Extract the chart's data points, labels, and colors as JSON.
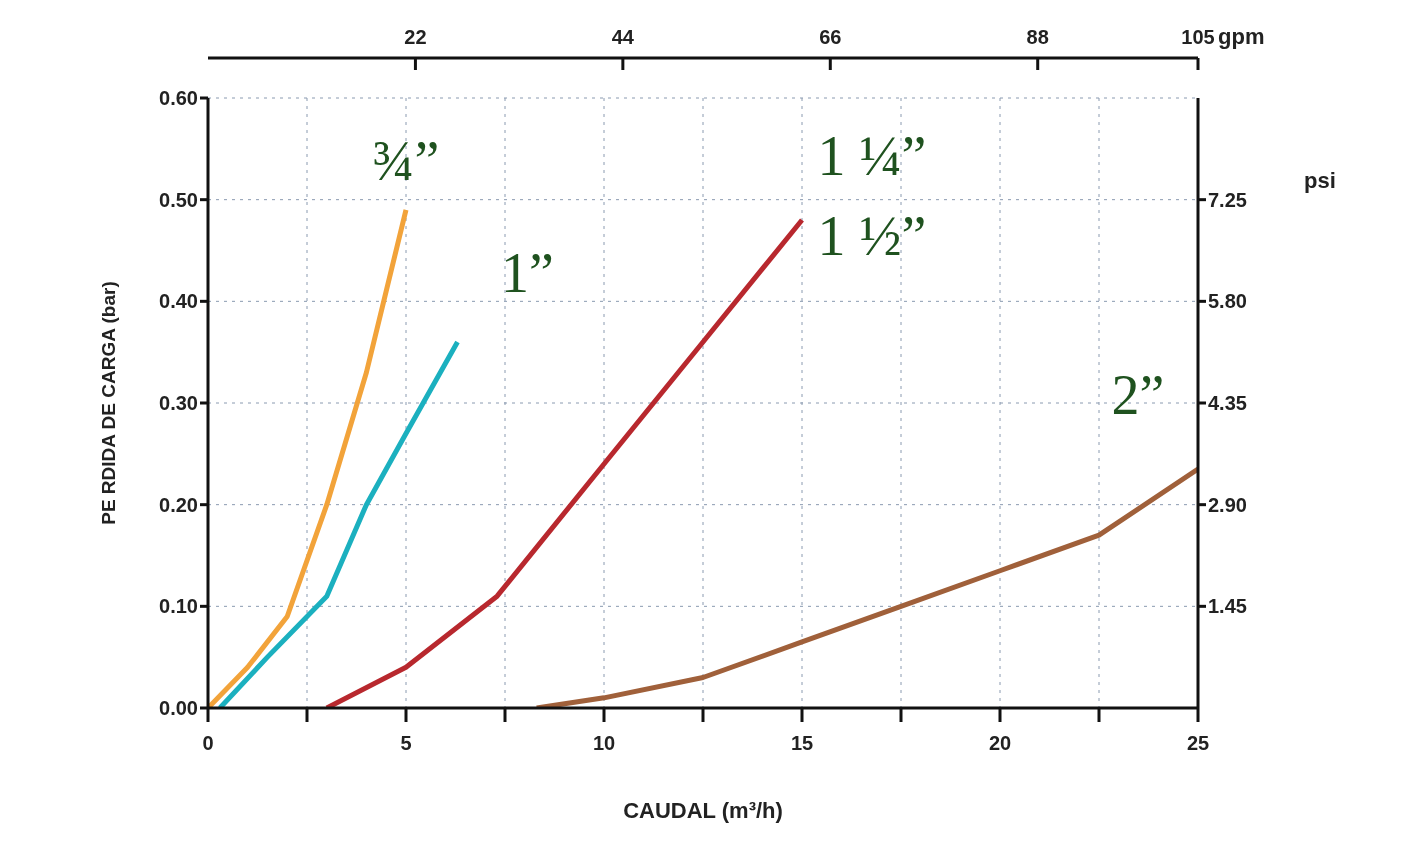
{
  "chart_data": {
    "type": "line",
    "xlabel": "CAUDAL (m³/h)",
    "ylabel": "PE RDIDA DE CARGA (bar)",
    "x2label": "gpm",
    "y2label": "psi",
    "series": [
      {
        "name": "¾”",
        "color": "#f2a33a",
        "x": [
          0,
          1,
          2,
          3,
          4,
          4.5,
          5
        ],
        "values": [
          0,
          0.04,
          0.09,
          0.2,
          0.33,
          0.41,
          0.49
        ]
      },
      {
        "name": "1”",
        "color": "#1bb0bf",
        "x": [
          0.3,
          1.5,
          3,
          4,
          5,
          6.3
        ],
        "values": [
          0,
          0.05,
          0.11,
          0.2,
          0.27,
          0.36
        ]
      },
      {
        "name": "1 ¼”",
        "color": "#b8282e",
        "x": [
          3,
          5,
          7.3,
          10,
          12.5,
          15
        ],
        "values": [
          0,
          0.04,
          0.11,
          0.24,
          0.36,
          0.48
        ]
      },
      {
        "name": "2”",
        "color": "#a0603a",
        "x": [
          8.3,
          10,
          12.5,
          15,
          17.5,
          20,
          22.5,
          25
        ],
        "values": [
          0,
          0.01,
          0.03,
          0.065,
          0.1,
          0.135,
          0.17,
          0.235
        ]
      }
    ],
    "annotations": [
      {
        "text": "1 ½”",
        "x": 15,
        "y": 0.48
      }
    ],
    "xlim": [
      0,
      25
    ],
    "xticks": [
      0,
      {
        "value": 2.5,
        "label": null
      },
      5,
      {
        "value": 7.5,
        "label": null
      },
      10,
      {
        "value": 12.5,
        "label": null
      },
      15,
      {
        "value": 17.5,
        "label": null
      },
      20,
      {
        "value": 22.5,
        "label": null
      },
      25
    ],
    "ylim": [
      0,
      0.6
    ],
    "yticks": [
      {
        "value": 0,
        "label": "0.00"
      },
      {
        "value": 0.1,
        "label": "0.10"
      },
      {
        "value": 0.2,
        "label": "0.20"
      },
      {
        "value": 0.3,
        "label": "0.30"
      },
      {
        "value": 0.4,
        "label": "0.40"
      },
      {
        "value": 0.5,
        "label": "0.50"
      },
      {
        "value": 0.6,
        "label": "0.60"
      }
    ],
    "x2lim": [
      0,
      105
    ],
    "x2ticks": [
      22,
      44,
      66,
      88,
      105
    ],
    "y2lim": [
      0,
      8.7
    ],
    "y2ticks": [
      1.45,
      {
        "value": 2.9,
        "label": "2.90"
      },
      4.35,
      {
        "value": 5.8,
        "label": "5.80"
      },
      7.25
    ],
    "grid": true,
    "marker": "none",
    "line_style": "solid"
  }
}
